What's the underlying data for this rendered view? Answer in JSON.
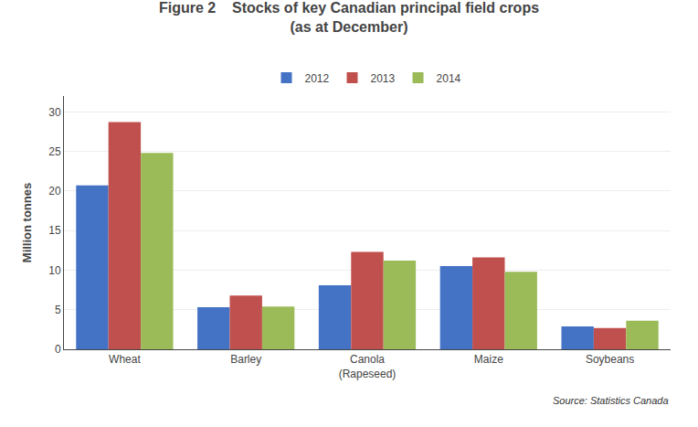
{
  "chart_data": {
    "type": "bar",
    "title": "Figure 2    Stocks of key Canadian principal field crops\n(as at December)",
    "categories": [
      "Wheat",
      "Barley",
      "Canola\n(Rapeseed)",
      "Maize",
      "Soybeans"
    ],
    "series": [
      {
        "name": "2012",
        "color": "#4472C4",
        "values": [
          20.7,
          5.3,
          8.1,
          10.5,
          2.9
        ]
      },
      {
        "name": "2013",
        "color": "#C0504D",
        "values": [
          28.7,
          6.8,
          12.3,
          11.6,
          2.7
        ]
      },
      {
        "name": "2014",
        "color": "#9BBB59",
        "values": [
          24.8,
          5.4,
          11.2,
          9.8,
          3.6
        ]
      }
    ],
    "ylabel": "Million tonnes",
    "ylim": [
      0,
      32
    ],
    "yticks": [
      0,
      5,
      10,
      15,
      20,
      25,
      30
    ],
    "grid": true,
    "legend": "top",
    "annotations": [
      "Source: Statistics Canada"
    ]
  }
}
